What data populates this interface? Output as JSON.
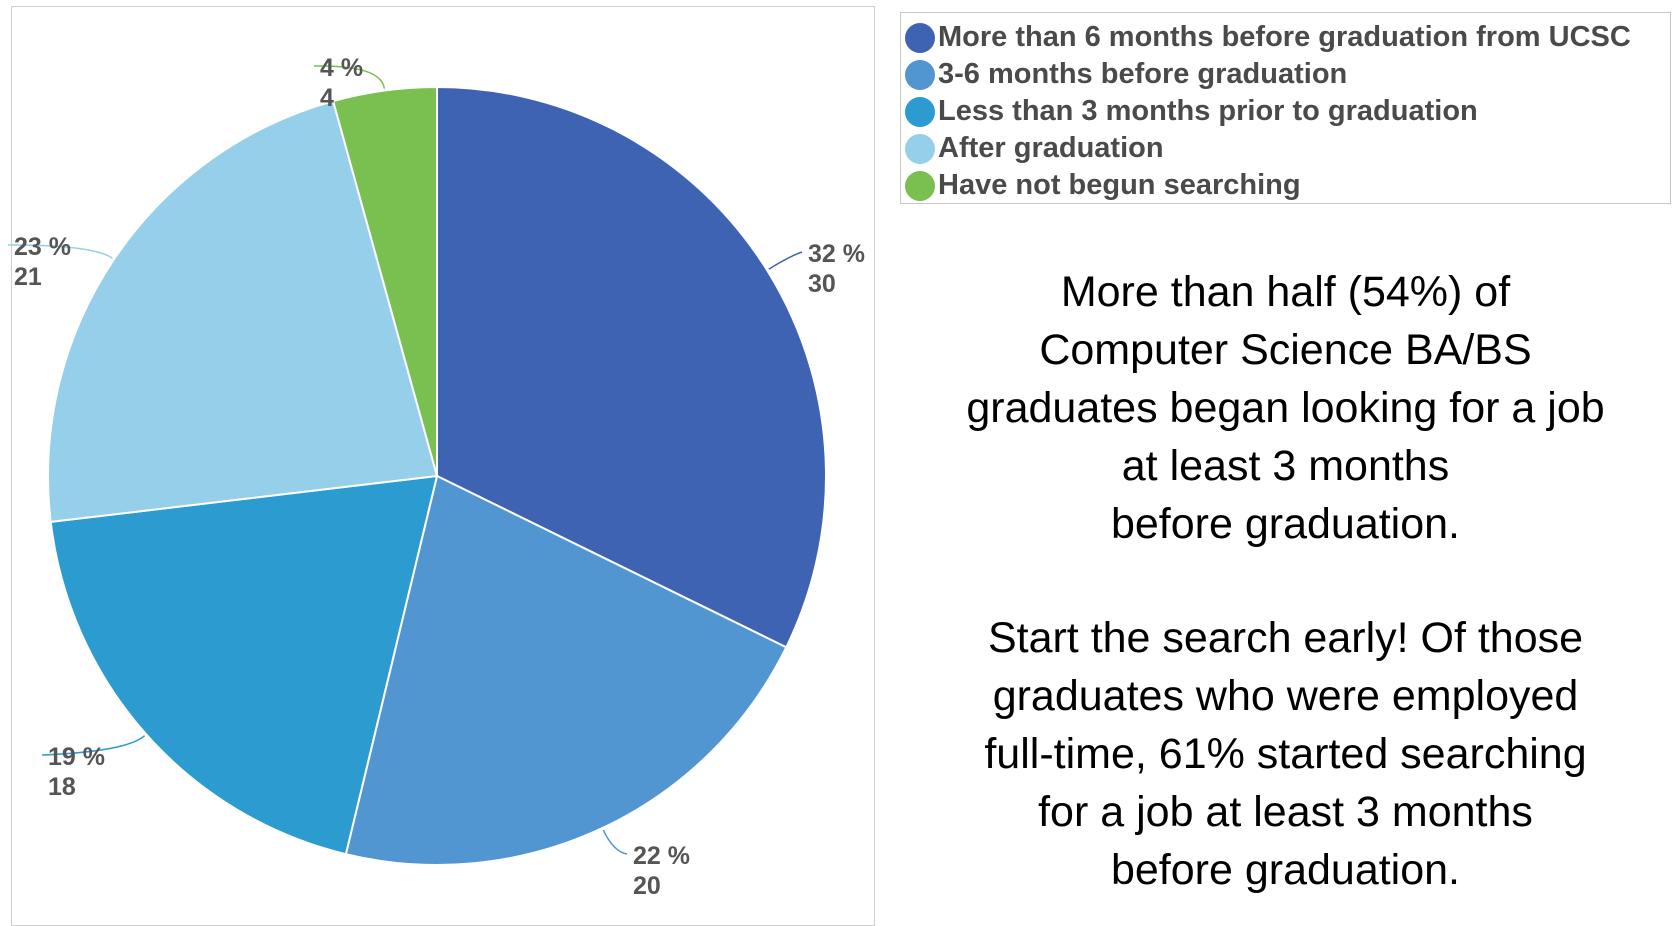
{
  "chart_data": {
    "type": "pie",
    "slices": [
      {
        "label": "More than 6 months before graduation from UCSC",
        "percent_label": "32 %",
        "value": 30,
        "color": "#3f63b3"
      },
      {
        "label": "3-6 months before graduation",
        "percent_label": "22 %",
        "value": 20,
        "color": "#5196d0"
      },
      {
        "label": "Less than 3 months prior to graduation",
        "percent_label": "19 %",
        "value": 18,
        "color": "#2b9bd0"
      },
      {
        "label": "After graduation",
        "percent_label": "23 %",
        "value": 21,
        "color": "#95cfe9"
      },
      {
        "label": "Have not begun searching",
        "percent_label": "4 %",
        "value": 4,
        "color": "#79c050"
      }
    ],
    "legend_position": "right"
  },
  "notes": {
    "paragraph_1": [
      "More than half (54%) of",
      "Computer Science BA/BS",
      "graduates began looking for a job",
      "at least 3 months",
      "before graduation."
    ],
    "paragraph_2": [
      "Start the search early! Of those",
      "graduates who were employed",
      "full-time, 61% started searching",
      "for a job at least 3 months",
      "before graduation."
    ]
  }
}
